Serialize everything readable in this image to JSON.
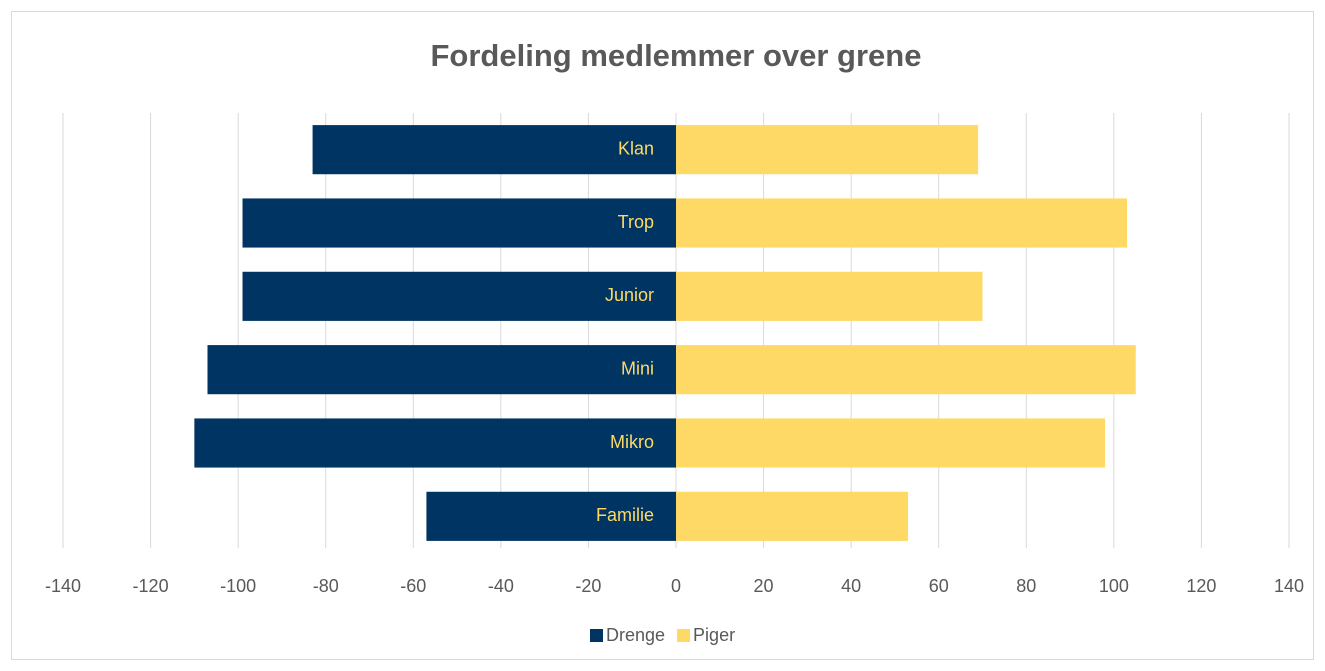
{
  "chart_data": {
    "type": "bar",
    "orientation": "horizontal",
    "title": "Fordeling medlemmer over grene",
    "categories": [
      "Klan",
      "Trop",
      "Junior",
      "Mini",
      "Mikro",
      "Familie"
    ],
    "series": [
      {
        "name": "Drenge",
        "color": "#003462",
        "values": [
          -83,
          -99,
          -99,
          -107,
          -110,
          -57
        ]
      },
      {
        "name": "Piger",
        "color": "#ffd966",
        "values": [
          69,
          103,
          70,
          105,
          98,
          53
        ]
      }
    ],
    "xlim": [
      -140,
      140
    ],
    "xticks": [
      -140,
      -120,
      -100,
      -80,
      -60,
      -40,
      -20,
      0,
      20,
      40,
      60,
      80,
      100,
      120,
      140
    ],
    "grid": true,
    "legend": "bottom",
    "category_label_color": "#ffd966"
  }
}
